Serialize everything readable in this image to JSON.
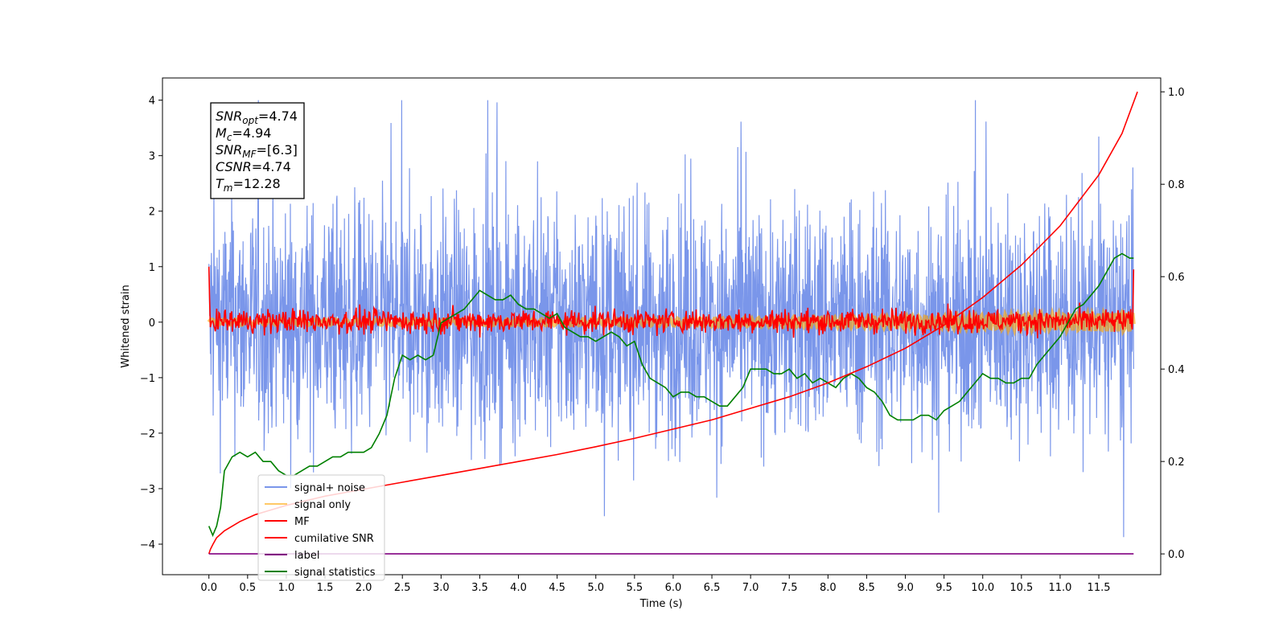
{
  "chart_data": {
    "type": "line",
    "xlabel": "Time (s)",
    "ylabel": "Whitened strain",
    "xlim": [
      -0.6,
      12.3
    ],
    "ylim": [
      -4.55,
      4.4
    ],
    "ylim_right": [
      -0.045,
      1.03
    ],
    "x_ticks": [
      "0.0",
      "0.5",
      "1.0",
      "1.5",
      "2.0",
      "2.5",
      "3.0",
      "3.5",
      "4.0",
      "4.5",
      "5.0",
      "5.5",
      "6.0",
      "6.5",
      "7.0",
      "7.5",
      "8.0",
      "8.5",
      "9.0",
      "9.5",
      "10.0",
      "10.5",
      "11.0",
      "11.5"
    ],
    "y_ticks": [
      "4",
      "3",
      "2",
      "1",
      "0",
      "−1",
      "−2",
      "−3",
      "−4"
    ],
    "y_ticks_right": [
      "1.0",
      "0.8",
      "0.6",
      "0.4",
      "0.2",
      "0.0"
    ],
    "grid": false,
    "legend_position": "lower-left",
    "legend": [
      {
        "label": "signal+ noise",
        "color": "#4169e1"
      },
      {
        "label": "signal only",
        "color": "#ffa500"
      },
      {
        "label": "MF",
        "color": "#ff0000"
      },
      {
        "label": "cumilative SNR",
        "color": "#ff0000"
      },
      {
        "label": "label",
        "color": "#800080"
      },
      {
        "label": "signal statistics",
        "color": "#008000"
      }
    ],
    "info_box": {
      "lines": [
        {
          "main": "SNR",
          "sub": "opt",
          "rest": "=4.74"
        },
        {
          "main": "M",
          "sub": "c",
          "rest": "=4.94"
        },
        {
          "main": "SNR",
          "sub": "MF",
          "rest": "=[6.3]"
        },
        {
          "main": "CSNR",
          "sub": "",
          "rest": "=4.74"
        },
        {
          "main": "T",
          "sub": "m",
          "rest": "=12.28"
        }
      ]
    },
    "series": [
      {
        "key": "signal_statistics",
        "axis": "right",
        "color": "#008000",
        "x": [
          0.0,
          0.05,
          0.1,
          0.15,
          0.2,
          0.3,
          0.4,
          0.5,
          0.6,
          0.7,
          0.8,
          0.9,
          1.0,
          1.1,
          1.2,
          1.3,
          1.4,
          1.5,
          1.6,
          1.7,
          1.8,
          1.9,
          2.0,
          2.1,
          2.2,
          2.3,
          2.4,
          2.5,
          2.6,
          2.7,
          2.8,
          2.9,
          3.0,
          3.1,
          3.2,
          3.3,
          3.4,
          3.5,
          3.6,
          3.7,
          3.8,
          3.9,
          4.0,
          4.1,
          4.2,
          4.3,
          4.4,
          4.5,
          4.6,
          4.7,
          4.8,
          4.9,
          5.0,
          5.1,
          5.2,
          5.3,
          5.4,
          5.5,
          5.6,
          5.7,
          5.8,
          5.9,
          6.0,
          6.1,
          6.2,
          6.3,
          6.4,
          6.5,
          6.6,
          6.7,
          6.8,
          6.9,
          7.0,
          7.1,
          7.2,
          7.3,
          7.4,
          7.5,
          7.6,
          7.7,
          7.8,
          7.9,
          8.0,
          8.1,
          8.2,
          8.3,
          8.4,
          8.5,
          8.6,
          8.7,
          8.8,
          8.9,
          9.0,
          9.1,
          9.2,
          9.3,
          9.4,
          9.5,
          9.6,
          9.7,
          9.8,
          9.9,
          10.0,
          10.1,
          10.2,
          10.3,
          10.4,
          10.5,
          10.6,
          10.7,
          10.8,
          10.9,
          11.0,
          11.1,
          11.2,
          11.3,
          11.4,
          11.5,
          11.6,
          11.7,
          11.8,
          11.9,
          11.95
        ],
        "values": [
          0.06,
          0.04,
          0.06,
          0.1,
          0.18,
          0.21,
          0.22,
          0.21,
          0.22,
          0.2,
          0.2,
          0.18,
          0.17,
          0.17,
          0.18,
          0.19,
          0.19,
          0.2,
          0.21,
          0.21,
          0.22,
          0.22,
          0.22,
          0.23,
          0.26,
          0.3,
          0.38,
          0.43,
          0.42,
          0.43,
          0.42,
          0.43,
          0.5,
          0.51,
          0.52,
          0.53,
          0.55,
          0.57,
          0.56,
          0.55,
          0.55,
          0.56,
          0.54,
          0.53,
          0.53,
          0.52,
          0.51,
          0.52,
          0.49,
          0.48,
          0.47,
          0.47,
          0.46,
          0.47,
          0.48,
          0.47,
          0.45,
          0.46,
          0.41,
          0.38,
          0.37,
          0.36,
          0.34,
          0.35,
          0.35,
          0.34,
          0.34,
          0.33,
          0.32,
          0.32,
          0.34,
          0.36,
          0.4,
          0.4,
          0.4,
          0.39,
          0.39,
          0.4,
          0.38,
          0.39,
          0.37,
          0.38,
          0.37,
          0.36,
          0.38,
          0.39,
          0.38,
          0.36,
          0.35,
          0.33,
          0.3,
          0.29,
          0.29,
          0.29,
          0.3,
          0.3,
          0.29,
          0.31,
          0.32,
          0.33,
          0.35,
          0.37,
          0.39,
          0.38,
          0.38,
          0.37,
          0.37,
          0.38,
          0.38,
          0.41,
          0.43,
          0.45,
          0.47,
          0.5,
          0.53,
          0.54,
          0.56,
          0.58,
          0.61,
          0.64,
          0.65,
          0.64,
          0.64
        ]
      },
      {
        "key": "cumulative_snr",
        "axis": "right",
        "color": "#ff0000",
        "x": [
          0.0,
          0.02,
          0.05,
          0.1,
          0.2,
          0.4,
          0.6,
          0.8,
          1.0,
          1.5,
          2.0,
          2.5,
          3.0,
          3.5,
          4.0,
          4.5,
          5.0,
          5.5,
          6.0,
          6.5,
          7.0,
          7.5,
          8.0,
          8.5,
          9.0,
          9.5,
          10.0,
          10.5,
          11.0,
          11.5,
          11.8,
          12.0
        ],
        "values": [
          0.0,
          0.01,
          0.02,
          0.035,
          0.05,
          0.07,
          0.085,
          0.095,
          0.105,
          0.125,
          0.14,
          0.155,
          0.17,
          0.185,
          0.2,
          0.215,
          0.232,
          0.25,
          0.27,
          0.29,
          0.315,
          0.34,
          0.37,
          0.405,
          0.445,
          0.495,
          0.555,
          0.625,
          0.71,
          0.82,
          0.91,
          1.0
        ]
      },
      {
        "key": "label",
        "axis": "right",
        "color": "#800080",
        "x": [
          0.0,
          11.95
        ],
        "values": [
          0.0,
          0.0
        ]
      }
    ]
  }
}
